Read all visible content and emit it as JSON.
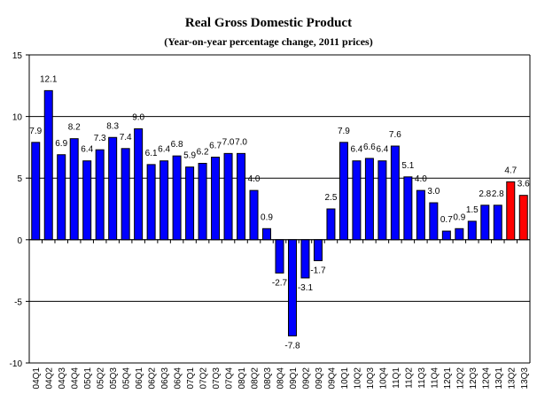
{
  "chart_data": {
    "type": "bar",
    "title": "Real Gross Domestic Product",
    "subtitle": "(Year-on-year percentage change, 2011 prices)",
    "xlabel": "",
    "ylabel": "",
    "ylim": [
      -10,
      15
    ],
    "yticks": [
      -10,
      -5,
      0,
      5,
      10,
      15
    ],
    "grid": true,
    "categories": [
      "04Q1",
      "04Q2",
      "04Q3",
      "04Q4",
      "05Q1",
      "05Q2",
      "05Q3",
      "05Q4",
      "06Q1",
      "06Q2",
      "06Q3",
      "06Q4",
      "07Q1",
      "07Q2",
      "07Q3",
      "07Q4",
      "08Q1",
      "08Q2",
      "08Q3",
      "08Q4",
      "09Q1",
      "09Q2",
      "09Q3",
      "09Q4",
      "10Q1",
      "10Q2",
      "10Q3",
      "10Q4",
      "11Q1",
      "11Q2",
      "11Q3",
      "11Q4",
      "12Q1",
      "12Q2",
      "12Q3",
      "12Q4",
      "13Q1",
      "13Q2",
      "13Q3"
    ],
    "values": [
      7.9,
      12.1,
      6.9,
      8.2,
      6.4,
      7.3,
      8.3,
      7.4,
      9.0,
      6.1,
      6.4,
      6.8,
      5.9,
      6.2,
      6.7,
      7.0,
      7.0,
      4.0,
      0.9,
      -2.7,
      -7.8,
      -3.1,
      -1.7,
      2.5,
      7.9,
      6.4,
      6.6,
      6.4,
      7.6,
      5.1,
      4.0,
      3.0,
      0.7,
      0.9,
      1.5,
      2.8,
      2.8,
      4.7,
      3.6
    ],
    "colors": {
      "default": "#0000ff",
      "highlight": "#ff0000",
      "highlight_categories": [
        "13Q2",
        "13Q3"
      ]
    }
  }
}
